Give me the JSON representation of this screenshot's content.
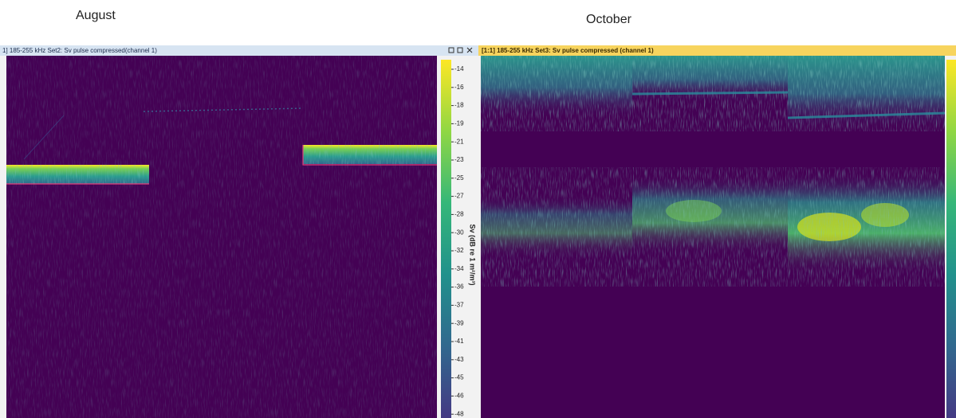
{
  "labels": {
    "left": "August",
    "right": "October"
  },
  "windows": [
    {
      "title": "1] 185-255 kHz Set2: Sv pulse compressed(channel 1)"
    },
    {
      "title": "[1:1] 185-255 kHz Set3: Sv pulse compressed (channel 1)"
    }
  ],
  "colorbar": {
    "label": "Sv (dB re 1 m²/m³)",
    "ticks": [
      "-14",
      "-16",
      "-18",
      "-19",
      "-21",
      "-23",
      "-25",
      "-27",
      "-28",
      "-30",
      "-32",
      "-34",
      "-36",
      "-37",
      "-39",
      "-41",
      "-43",
      "-45",
      "-46",
      "-48"
    ]
  }
}
